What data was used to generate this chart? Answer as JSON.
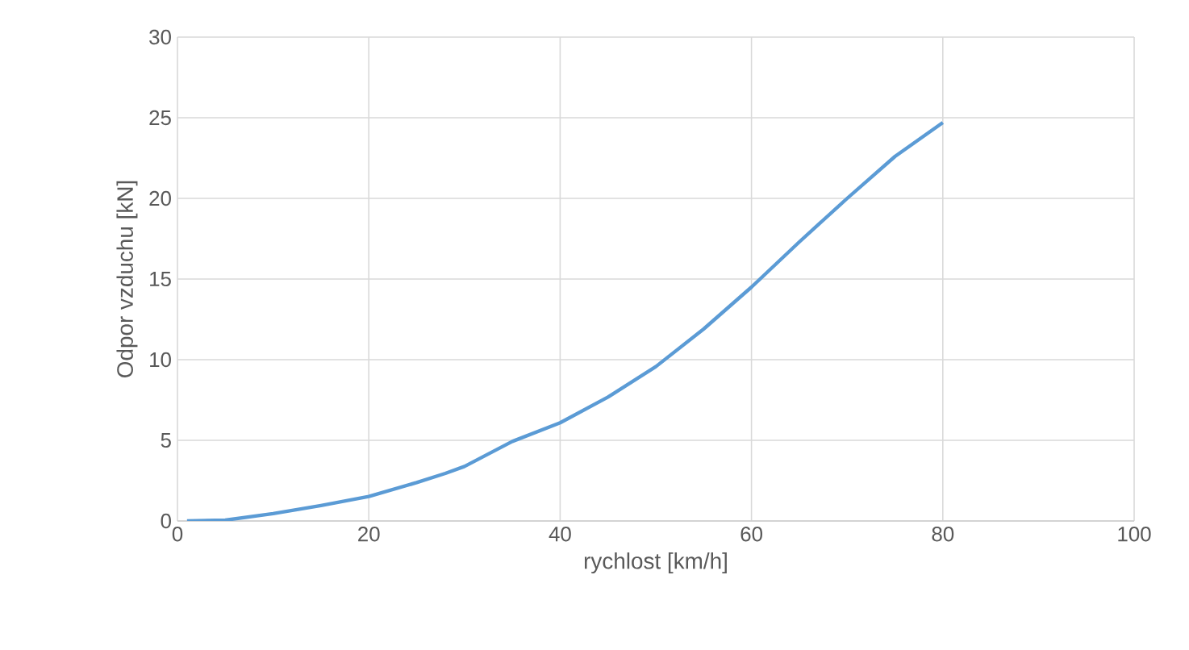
{
  "chart_data": {
    "type": "line",
    "xlabel": "rychlost [km/h]",
    "ylabel": "Odpor vzduchu [kN]",
    "series": [
      {
        "color": "#5b9bd5",
        "x": [
          1,
          5,
          10,
          15,
          20,
          25,
          28,
          30,
          35,
          40,
          45,
          50,
          55,
          60,
          65,
          70,
          75,
          80
        ],
        "values": [
          0,
          0.05,
          0.46,
          0.96,
          1.52,
          2.38,
          2.95,
          3.38,
          4.93,
          6.09,
          7.68,
          9.57,
          11.9,
          14.5,
          17.3,
          20.0,
          22.6,
          24.7
        ]
      }
    ],
    "xlim": [
      0,
      100
    ],
    "xticks": [
      0,
      20,
      40,
      60,
      80,
      100
    ],
    "ylim": [
      0,
      30
    ],
    "yticks": [
      0,
      5,
      10,
      15,
      20,
      25,
      30
    ],
    "grid": true,
    "marker": "none",
    "line_style": "solid"
  }
}
